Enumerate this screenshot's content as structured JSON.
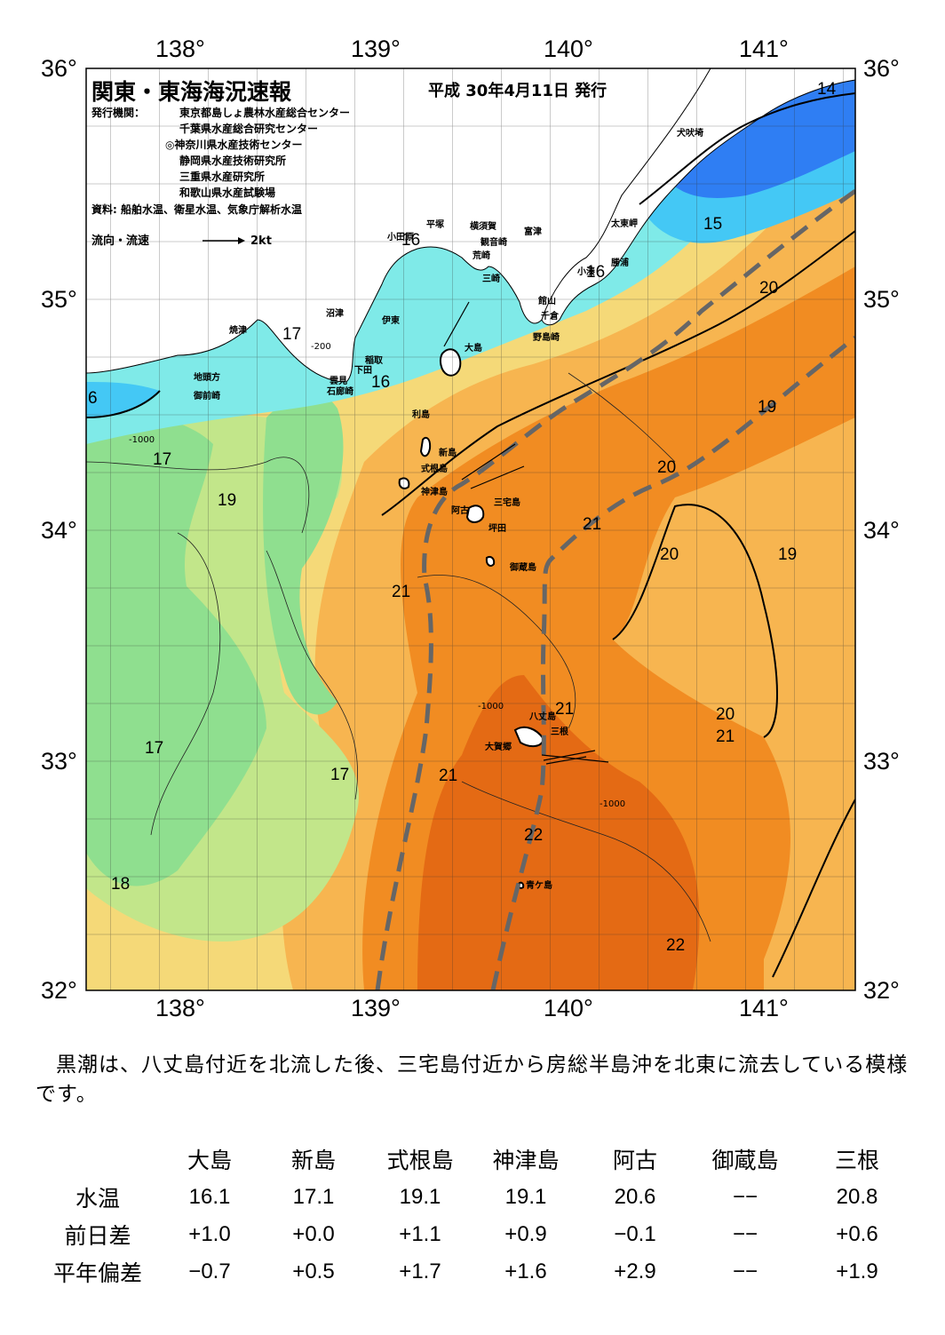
{
  "header": {
    "title": "関東・東海海況速報",
    "date": "平成 30年4月11日 発行",
    "issuer_label": "発行機関：",
    "issuers": [
      "東京都島しょ農林水産総合センター",
      "千葉県水産総合研究センター",
      "◎神奈川県水産技術センター",
      "静岡県水産技術研究所",
      "三重県水産研究所",
      "和歌山県水産試験場"
    ],
    "source": "資料: 船舶水温、衛星水温、気象庁解析水温",
    "legend_label": "流向・流速",
    "legend_scale": "2kt"
  },
  "axes": {
    "lon_ticks": [
      "138°",
      "139°",
      "140°",
      "141°"
    ],
    "lat_ticks": [
      "36°",
      "35°",
      "34°",
      "33°",
      "32°"
    ]
  },
  "sst_labels": [
    "14",
    "15",
    "16",
    "16",
    "16",
    "17",
    "17",
    "17",
    "17",
    "18",
    "19",
    "19",
    "19",
    "20",
    "20",
    "20",
    "20",
    "21",
    "21",
    "21",
    "21",
    "21",
    "22",
    "22",
    "6"
  ],
  "depth_labels": [
    "-200",
    "-1000"
  ],
  "places": [
    "犬吠埼",
    "太東岬",
    "勝浦",
    "小湊",
    "富津",
    "横須賀",
    "観音崎",
    "荒崎",
    "三崎",
    "平塚",
    "小田原",
    "館山",
    "千倉",
    "野島崎",
    "大島",
    "利島",
    "新島",
    "式根島",
    "神津島",
    "三宅島",
    "阿古",
    "坪田",
    "御蔵島",
    "八丈島",
    "大賀郷",
    "三根",
    "青ケ島",
    "沼津",
    "伊東",
    "焼津",
    "稲取",
    "下田",
    "雲見",
    "石廊崎",
    "地頭方",
    "御前崎"
  ],
  "colors": {
    "band_14": "#2f7ef3",
    "band_15": "#44c8f5",
    "band_16": "#7feae8",
    "band_17": "#8fdf8f",
    "band_18": "#c2e68a",
    "band_19": "#f5d978",
    "band_20": "#f7b550",
    "band_21": "#f18c22",
    "band_22": "#e46a14",
    "kuroshio_axis": "#666666"
  },
  "summary": "黒潮は、八丈島付近を北流した後、三宅島付近から房総半島沖を北東に流去している模様です。",
  "table": {
    "columns": [
      "大島",
      "新島",
      "式根島",
      "神津島",
      "阿古",
      "御蔵島",
      "三根"
    ],
    "rows": [
      {
        "label": "水温",
        "values": [
          "16.1",
          "17.1",
          "19.1",
          "19.1",
          "20.6",
          "−−",
          "20.8"
        ]
      },
      {
        "label": "前日差",
        "values": [
          "+1.0",
          "+0.0",
          "+1.1",
          "+0.9",
          "−0.1",
          "−−",
          "+0.6"
        ]
      },
      {
        "label": "平年偏差",
        "values": [
          "−0.7",
          "+0.5",
          "+1.7",
          "+1.6",
          "+2.9",
          "−−",
          "+1.9"
        ]
      }
    ]
  }
}
